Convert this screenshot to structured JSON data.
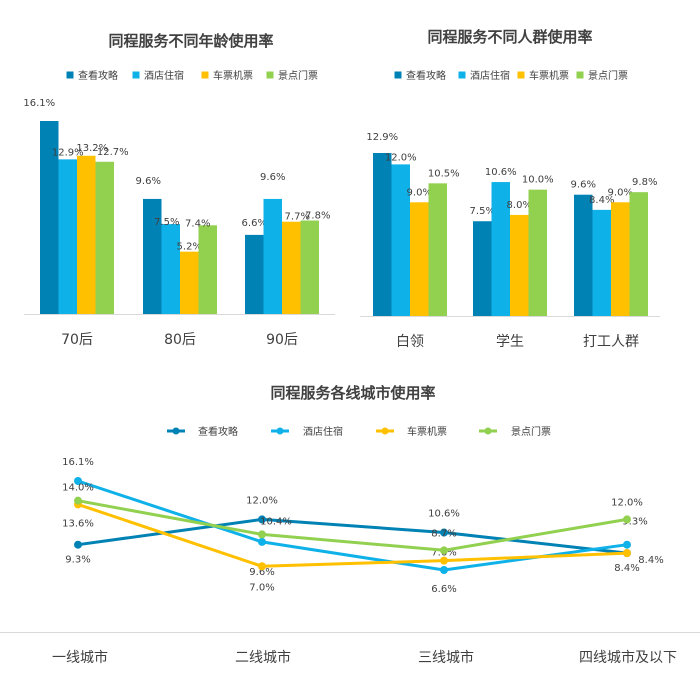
{
  "colors": {
    "s0": "#0082B4",
    "s1": "#0FB1E9",
    "s2": "#FFC000",
    "s3": "#92D050",
    "axis": "#D9D9D9",
    "text": "#404040"
  },
  "chart_data": [
    {
      "type": "bar",
      "title": "同程服务不同年龄使用率",
      "categories": [
        "70后",
        "80后",
        "90后"
      ],
      "series": [
        {
          "name": "查看攻略",
          "values": [
            16.1,
            9.6,
            6.6
          ],
          "labels": [
            "16.1%",
            "9.6%",
            "6.6%"
          ]
        },
        {
          "name": "酒店住宿",
          "values": [
            12.9,
            7.5,
            9.6
          ],
          "labels": [
            "12.9%",
            "7.5%",
            "9.6%"
          ]
        },
        {
          "name": "车票机票",
          "values": [
            13.2,
            5.2,
            7.7
          ],
          "labels": [
            "13.2%",
            "5.2%",
            "7.7%"
          ]
        },
        {
          "name": "景点门票",
          "values": [
            12.7,
            7.4,
            7.8
          ],
          "labels": [
            "12.7%",
            "7.4%",
            "7.8%"
          ]
        }
      ],
      "ylim": [
        0,
        16.1
      ]
    },
    {
      "type": "bar",
      "title": "同程服务不同人群使用率",
      "categories": [
        "白领",
        "学生",
        "打工人群"
      ],
      "series": [
        {
          "name": "查看攻略",
          "values": [
            12.9,
            7.5,
            9.6
          ],
          "labels": [
            "12.9%",
            "7.5%",
            "9.6%"
          ]
        },
        {
          "name": "酒店住宿",
          "values": [
            12.0,
            10.6,
            8.4
          ],
          "labels": [
            "12.0%",
            "10.6%",
            "8.4%"
          ]
        },
        {
          "name": "车票机票",
          "values": [
            9.0,
            8.0,
            9.0
          ],
          "labels": [
            "9.0%",
            "8.0%",
            "9.0%"
          ]
        },
        {
          "name": "景点门票",
          "values": [
            10.5,
            10.0,
            9.8
          ],
          "labels": [
            "10.5%",
            "10.0%",
            "9.8%"
          ]
        }
      ],
      "ylim": [
        0,
        12.9
      ]
    },
    {
      "type": "line",
      "title": "同程服务各线城市使用率",
      "categories": [
        "一线城市",
        "二线城市",
        "三线城市",
        "四线城市及以下"
      ],
      "series": [
        {
          "name": "查看攻略",
          "values": [
            9.3,
            12.0,
            10.6,
            8.4
          ],
          "labels": [
            "9.3%",
            "12.0%",
            "10.6%",
            "8.4%"
          ]
        },
        {
          "name": "酒店住宿",
          "values": [
            16.1,
            9.6,
            6.6,
            9.3
          ],
          "labels": [
            "16.1%",
            "9.6%",
            "6.6%",
            "9.3%"
          ]
        },
        {
          "name": "车票机票",
          "values": [
            13.6,
            7.0,
            7.6,
            8.4
          ],
          "labels": [
            "13.6%",
            "7.0%",
            "7.6%",
            "8.4%"
          ]
        },
        {
          "name": "景点门票",
          "values": [
            14.0,
            10.4,
            8.7,
            12.0
          ],
          "labels": [
            "14.0%",
            "10.4%",
            "8.7%",
            "12.0%"
          ]
        }
      ],
      "ylim": [
        6.6,
        16.1
      ]
    }
  ]
}
